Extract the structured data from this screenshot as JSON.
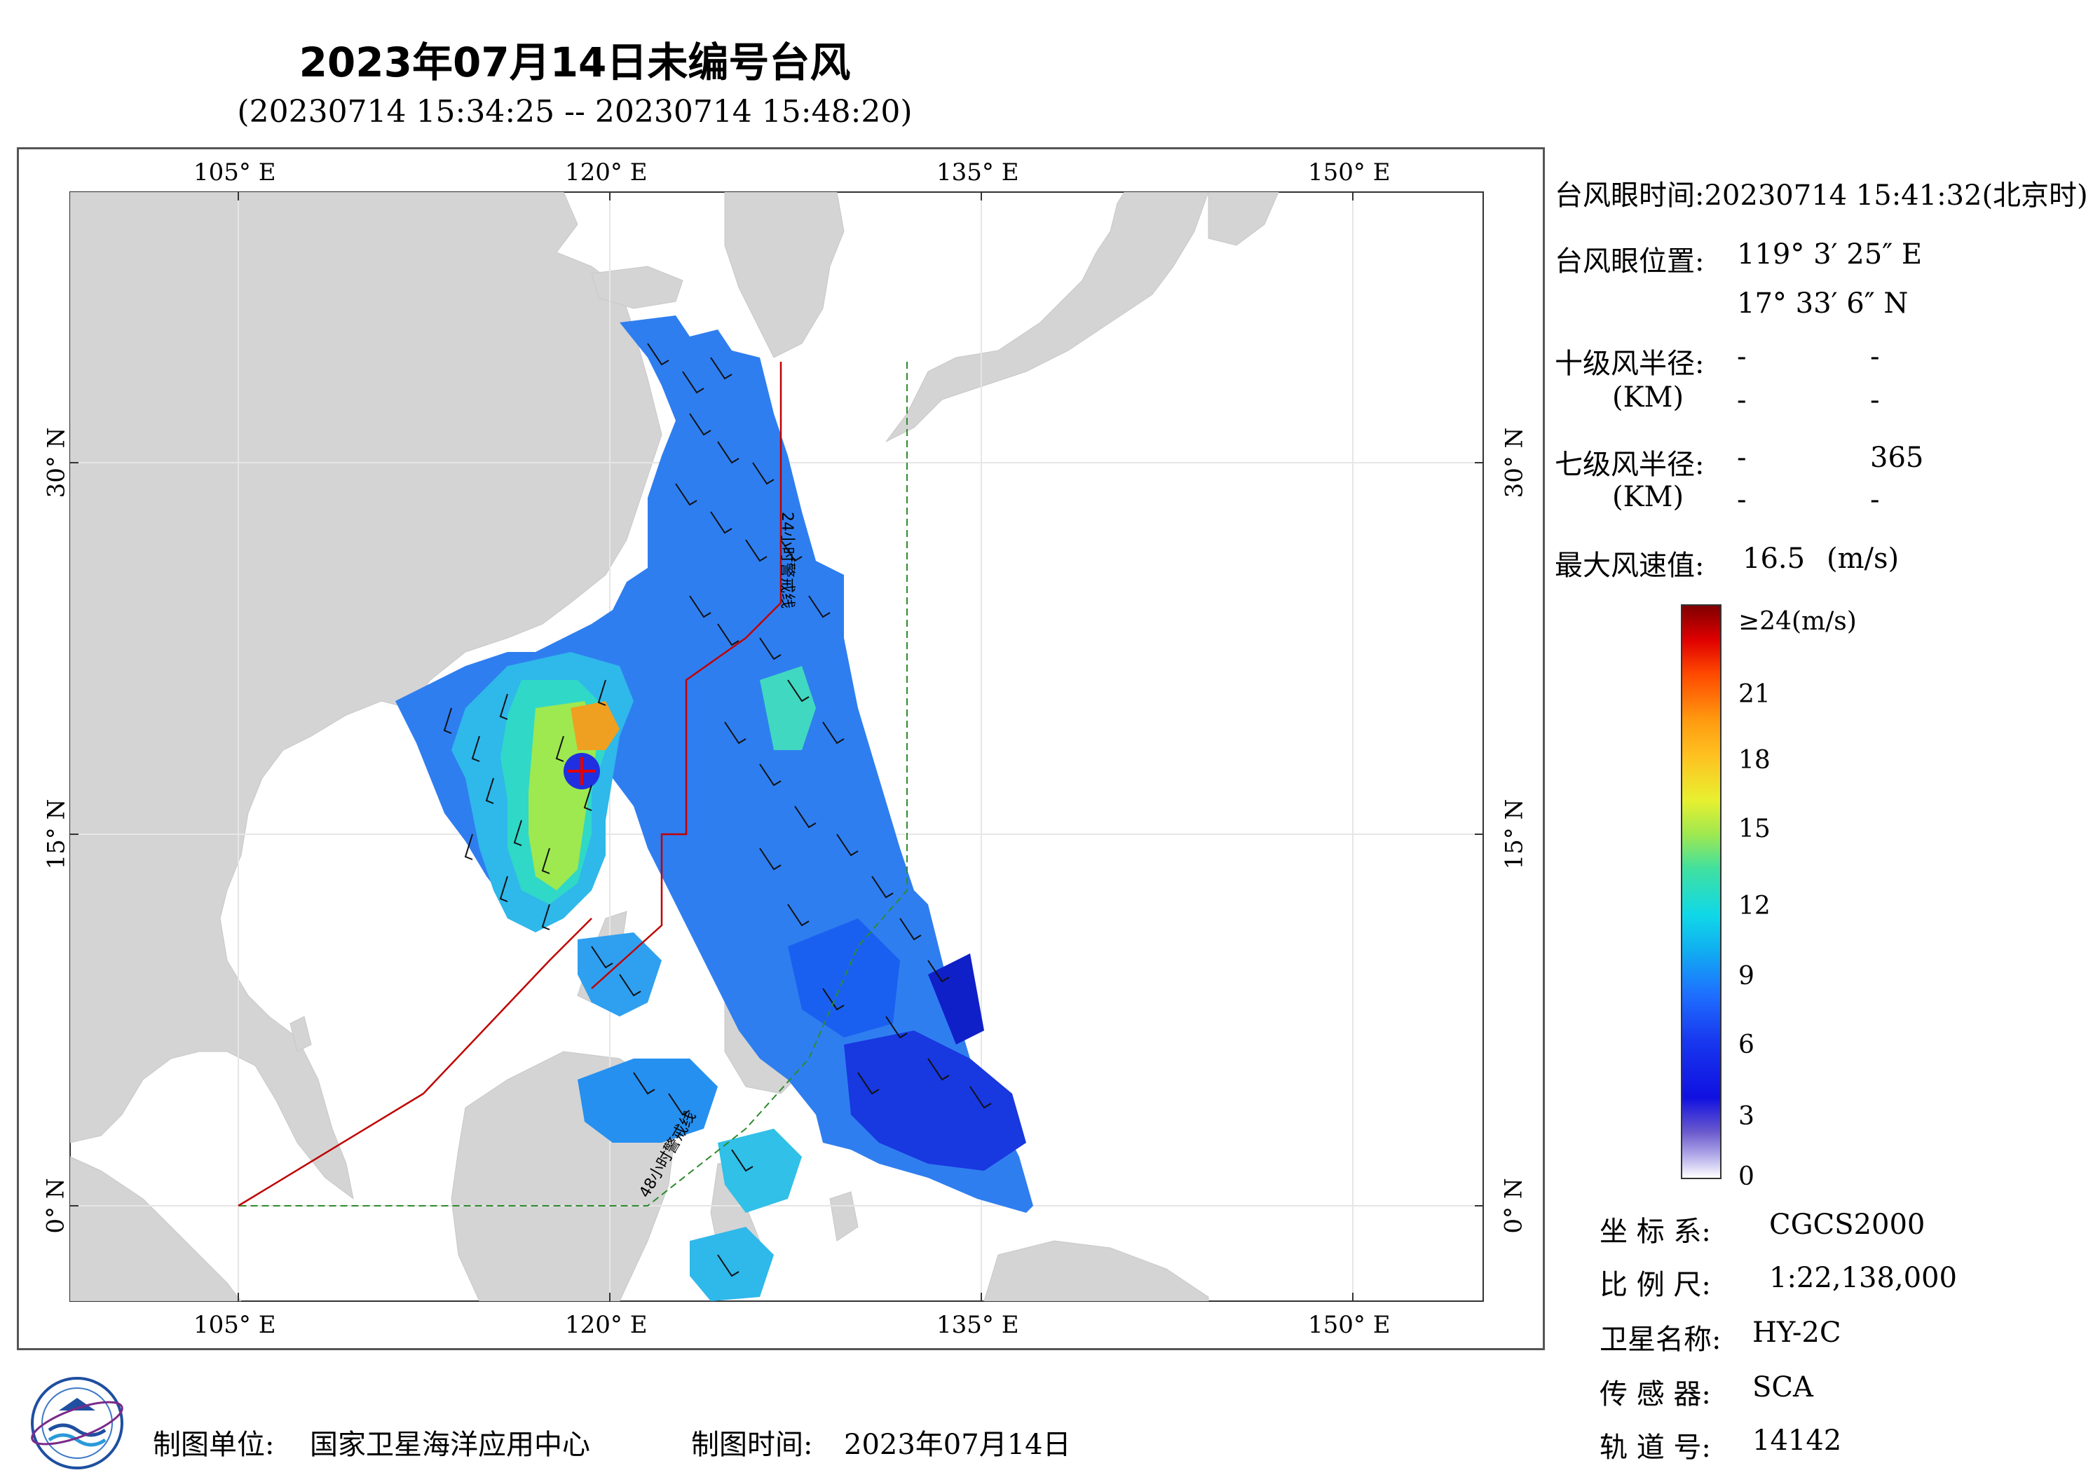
{
  "header": {
    "title": "2023年07月14日未编号台风",
    "subtitle": "(20230714 15:34:25 -- 20230714 15:48:20)"
  },
  "map": {
    "lon_labels_top": [
      "105° E",
      "120° E",
      "135° E",
      "150° E"
    ],
    "lon_labels_bottom": [
      "105° E",
      "120° E",
      "135° E",
      "150° E"
    ],
    "lat_labels_left": [
      "30° N",
      "15° N",
      "0° N"
    ],
    "lat_labels_right": [
      "30° N",
      "15° N",
      "0° N"
    ],
    "line_labels": [
      "24小时警戒线",
      "48小时警戒线"
    ],
    "colors": {
      "land": "#d3d3d3",
      "sea": "#ffffff",
      "warning_24h": "#c00000",
      "warning_48h": "#2e8b2e"
    }
  },
  "info": {
    "eye_time_label": "台风眼时间:",
    "eye_time_value": "20230714 15:41:32(北京时)",
    "eye_pos_label": "台风眼位置:",
    "eye_lon": "119° 3′ 25″ E",
    "eye_lat": "17° 33′ 6″ N",
    "r10_label": "十级风半径:",
    "r10_values": [
      "-",
      "-",
      "-",
      "-"
    ],
    "r7_label": "七级风半径:",
    "r7_values": [
      "-",
      "365",
      "-",
      "-"
    ],
    "km_unit": "(KM)",
    "max_wind_label": "最大风速值:",
    "max_wind_value": "16.5",
    "max_wind_unit": "(m/s)"
  },
  "colorbar": {
    "ticks": [
      "≥24(m/s)",
      "21",
      "18",
      "15",
      "12",
      "9",
      "6",
      "3",
      "0"
    ],
    "range": [
      0,
      24
    ],
    "colors": [
      "#ffffff",
      "#6a5acd",
      "#1010e0",
      "#1e6fff",
      "#10c8e8",
      "#40e0a0",
      "#e8f030",
      "#ff9a10",
      "#ff2000",
      "#800000"
    ]
  },
  "meta": {
    "coord_label": "坐 标 系:",
    "coord_value": "CGCS2000",
    "scale_label": "比 例 尺:",
    "scale_value": "1:22,138,000",
    "satellite_label": "卫星名称:",
    "satellite_value": "HY-2C",
    "sensor_label": "传 感 器:",
    "sensor_value": "SCA",
    "orbit_label": "轨 道 号:",
    "orbit_value": "14142"
  },
  "footer": {
    "unit_label": "制图单位:",
    "unit_value": "国家卫星海洋应用中心",
    "time_label": "制图时间:",
    "time_value": "2023年07月14日"
  }
}
